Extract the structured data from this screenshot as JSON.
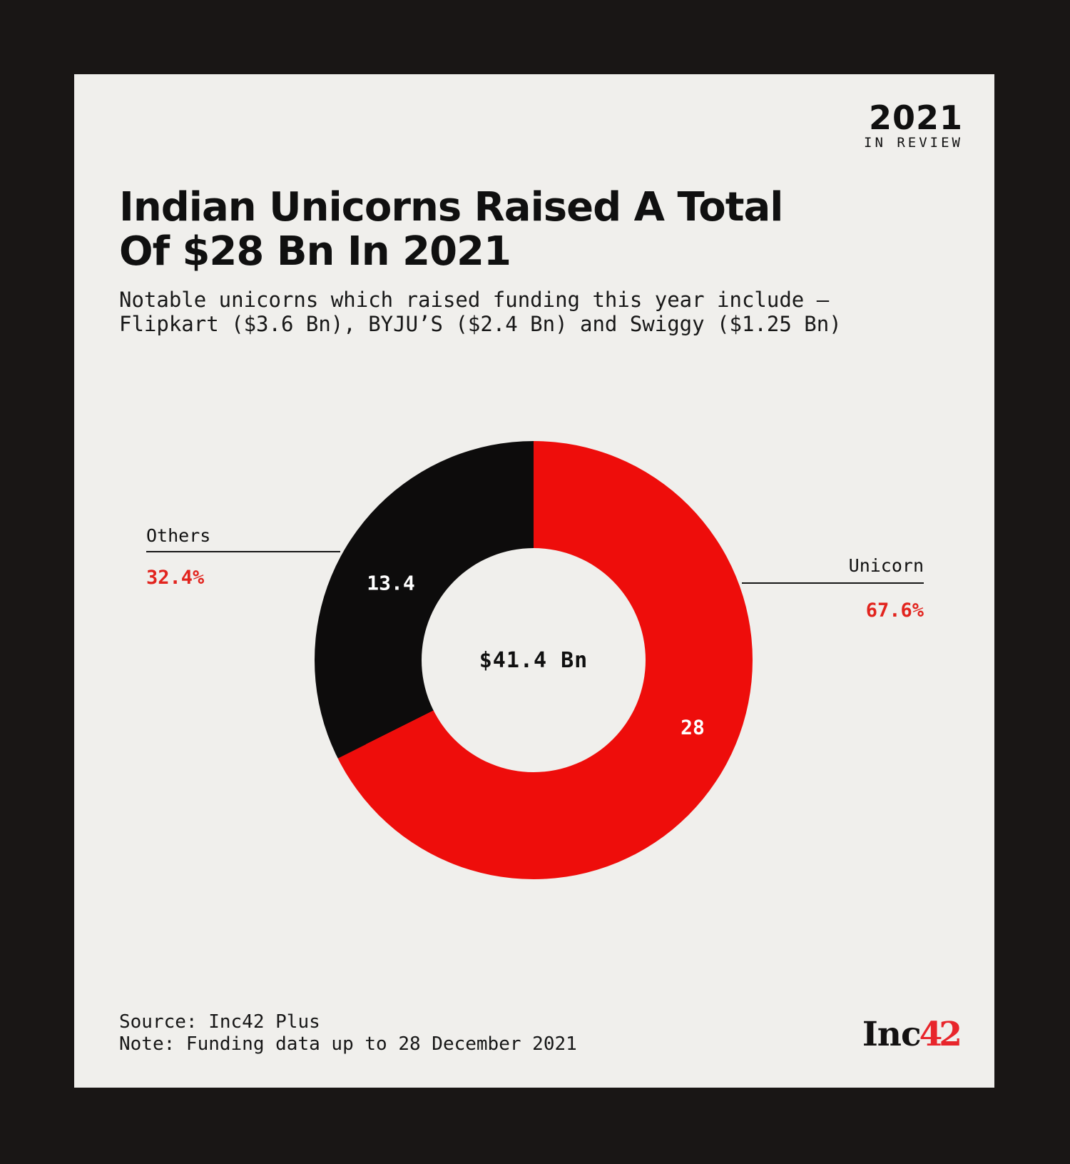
{
  "badge": {
    "year": "2021",
    "tagline": "IN REVIEW"
  },
  "header": {
    "title": "Indian Unicorns Raised A Total\nOf $28 Bn In 2021",
    "subtitle": "Notable unicorns which raised funding this year include –\nFlipkart ($3.6 Bn), BYJU’S ($2.4 Bn) and Swiggy ($1.25 Bn)"
  },
  "chart_data": {
    "type": "pie",
    "subtype": "donut",
    "title": "Indian Unicorns Raised A Total Of $28 Bn In 2021",
    "center_label": "$41.4 Bn",
    "total_value_bn": 41.4,
    "start_angle_deg": 0,
    "direction": "clockwise",
    "legend_position": "callout-lines",
    "slices": [
      {
        "label": "Unicorn",
        "value_bn": 28,
        "percent": 67.6,
        "percent_label": "67.6%",
        "value_label": "28",
        "color": "#ee0d0b"
      },
      {
        "label": "Others",
        "value_bn": 13.4,
        "percent": 32.4,
        "percent_label": "32.4%",
        "value_label": "13.4",
        "color": "#0d0c0c"
      }
    ]
  },
  "footer": {
    "source": "Source: Inc42 Plus",
    "note": "Note: Funding data up to 28 December 2021",
    "logo_black": "Inc",
    "logo_red": "42"
  },
  "colors": {
    "bg": "#191615",
    "card": "#f0efec",
    "ink": "#101010",
    "slice-red": "#ee0d0b",
    "slice-black": "#0d0c0c",
    "accent-red": "#e2241e",
    "logo-red": "#e8252b"
  }
}
